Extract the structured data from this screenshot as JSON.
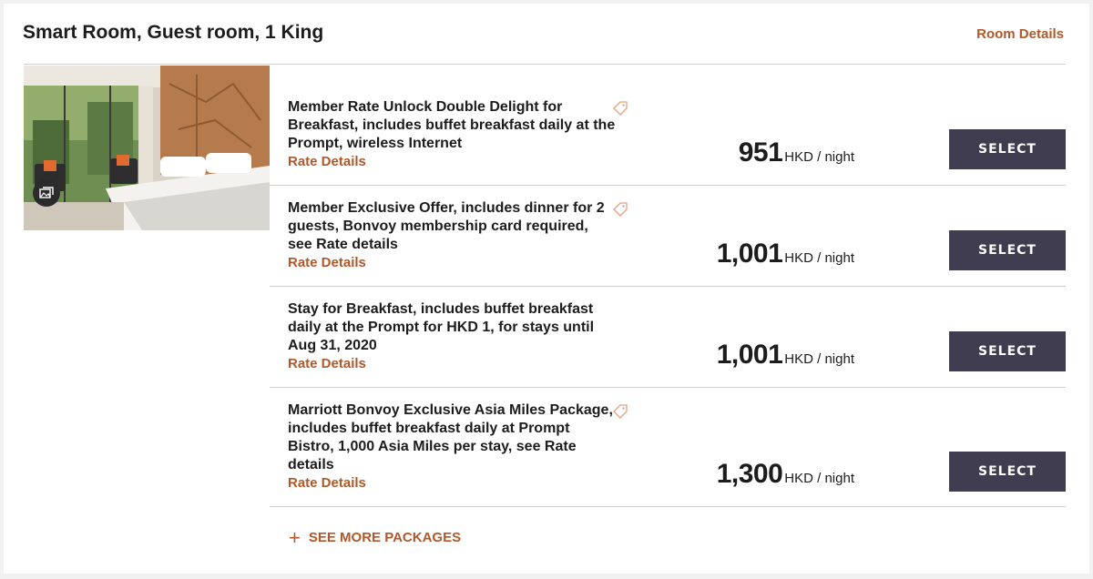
{
  "room": {
    "title": "Smart Room, Guest room, 1 King",
    "details_link": "Room Details",
    "photo_icon": "gallery-icon"
  },
  "rates": [
    {
      "description": "Member Rate Unlock Double Delight for Breakfast, includes buffet breakfast daily at the Prompt, wireless Internet",
      "details_link": "Rate Details",
      "price": "951",
      "unit": "HKD / night",
      "select_label": "SELECT",
      "has_tag_icon": true
    },
    {
      "description": "Member Exclusive Offer, includes dinner for 2 guests, Bonvoy membership card required, see Rate details",
      "details_link": "Rate Details",
      "price": "1,001",
      "unit": "HKD / night",
      "select_label": "SELECT",
      "has_tag_icon": true
    },
    {
      "description": "Stay for Breakfast, includes buffet breakfast daily at the Prompt for HKD 1, for stays until Aug 31, 2020",
      "details_link": "Rate Details",
      "price": "1,001",
      "unit": "HKD / night",
      "select_label": "SELECT",
      "has_tag_icon": false
    },
    {
      "description": "Marriott Bonvoy Exclusive Asia Miles Package, includes buffet breakfast daily at Prompt Bistro, 1,000 Asia Miles per stay, see Rate details",
      "details_link": "Rate Details",
      "price": "1,300",
      "unit": "HKD / night",
      "select_label": "SELECT",
      "has_tag_icon": true
    }
  ],
  "see_more": {
    "icon": "plus-icon",
    "label": "SEE MORE PACKAGES"
  },
  "colors": {
    "accent": "#b0582a",
    "button": "#3f3d4f",
    "divider": "#cfcfcf"
  }
}
